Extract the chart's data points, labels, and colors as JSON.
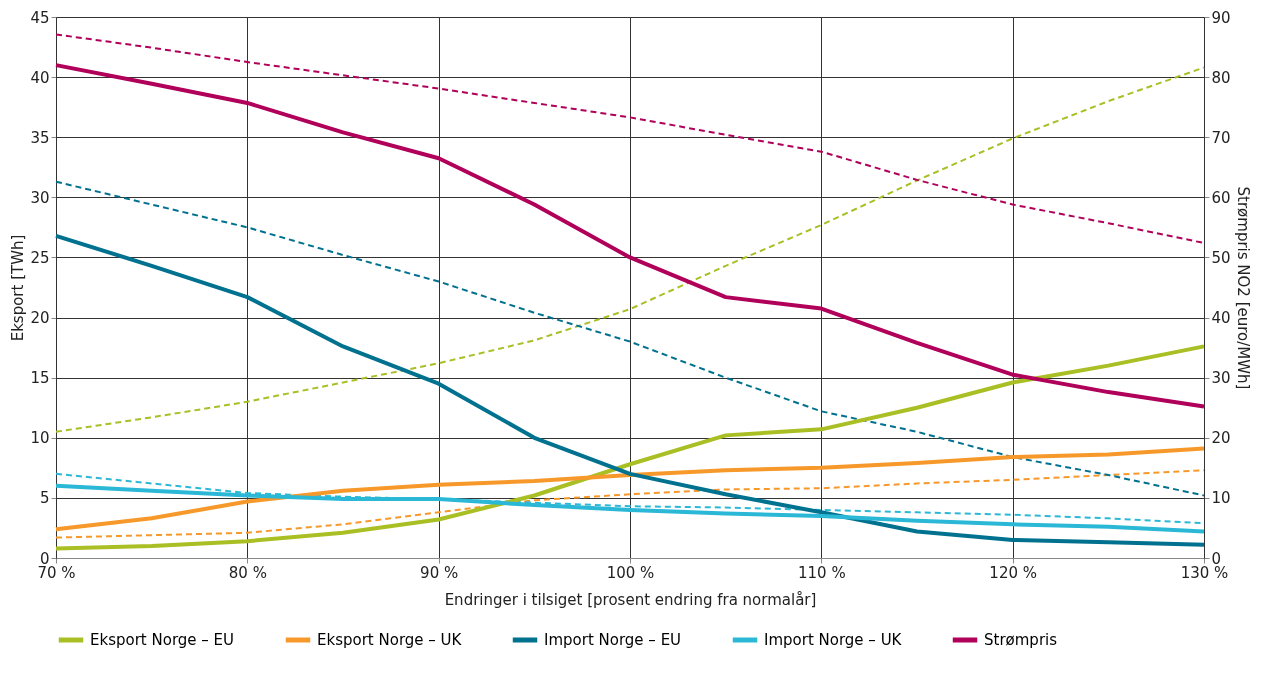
{
  "chart_data": {
    "type": "line",
    "xlabel": "Endringer i tilsiget [prosent endring fra normalår]",
    "ylabel": "Eksport [TWh]",
    "y2label": "Strømpris NO2 [euro/MWh]",
    "x": [
      70,
      75,
      80,
      85,
      90,
      95,
      100,
      105,
      110,
      115,
      120,
      125,
      130
    ],
    "xlim": [
      70,
      130
    ],
    "xticks": [
      {
        "value": 70,
        "label": "70 %"
      },
      {
        "value": 80,
        "label": "80 %"
      },
      {
        "value": 90,
        "label": "90 %"
      },
      {
        "value": 100,
        "label": "100 %"
      },
      {
        "value": 110,
        "label": "110 %"
      },
      {
        "value": 120,
        "label": "120 %"
      },
      {
        "value": 130,
        "label": "130 %"
      }
    ],
    "ylim": [
      0,
      45
    ],
    "yticks": [
      0,
      5,
      10,
      15,
      20,
      25,
      30,
      35,
      40,
      45
    ],
    "y2lim": [
      0,
      90
    ],
    "y2ticks": [
      0,
      10,
      20,
      30,
      40,
      50,
      60,
      70,
      80,
      90
    ],
    "grid": true,
    "legend": "bottom",
    "marker": "none",
    "series": [
      {
        "name": "Eksport Norge – EU",
        "color": "#a9bf24",
        "line_style": "solid",
        "values": [
          0.8,
          1.0,
          1.4,
          2.1,
          3.2,
          5.2,
          7.8,
          10.2,
          10.7,
          12.5,
          14.6,
          16.0,
          17.6
        ]
      },
      {
        "name": "Eksport Norge – UK",
        "color": "#f7982a",
        "line_style": "solid",
        "values": [
          2.4,
          3.3,
          4.7,
          5.6,
          6.1,
          6.4,
          6.9,
          7.3,
          7.5,
          7.9,
          8.4,
          8.6,
          9.1
        ]
      },
      {
        "name": "Import Norge – EU",
        "color": "#00718f",
        "line_style": "solid",
        "values": [
          26.8,
          24.3,
          21.7,
          17.6,
          14.5,
          10.0,
          7.0,
          5.3,
          3.8,
          2.2,
          1.5,
          1.3,
          1.1
        ]
      },
      {
        "name": "Import Norge – UK",
        "color": "#2bb8d6",
        "line_style": "solid",
        "values": [
          6.0,
          5.6,
          5.2,
          4.9,
          4.9,
          4.4,
          4.0,
          3.7,
          3.5,
          3.1,
          2.8,
          2.6,
          2.2
        ]
      },
      {
        "name": "Strømpris",
        "color": "#b0005a",
        "line_style": "solid",
        "axis": "y2",
        "values": [
          82.0,
          78.9,
          75.7,
          70.8,
          66.5,
          58.8,
          50.0,
          43.4,
          41.5,
          35.8,
          30.5,
          27.6,
          25.2
        ]
      },
      {
        "color": "#a9bf24",
        "line_style": "dashed",
        "values": [
          10.5,
          11.7,
          13.0,
          14.6,
          16.2,
          18.1,
          20.7,
          24.3,
          27.7,
          31.4,
          34.9,
          38.0,
          40.8
        ]
      },
      {
        "color": "#f7982a",
        "line_style": "dashed",
        "values": [
          1.7,
          1.9,
          2.1,
          2.8,
          3.8,
          4.8,
          5.3,
          5.7,
          5.8,
          6.2,
          6.5,
          6.9,
          7.3
        ]
      },
      {
        "color": "#00718f",
        "line_style": "dashed",
        "values": [
          31.3,
          29.4,
          27.5,
          25.2,
          23.0,
          20.4,
          18.0,
          15.0,
          12.2,
          10.5,
          8.4,
          6.9,
          5.2
        ]
      },
      {
        "color": "#2bb8d6",
        "line_style": "dashed",
        "values": [
          7.0,
          6.2,
          5.4,
          5.1,
          4.9,
          4.6,
          4.3,
          4.2,
          4.0,
          3.8,
          3.6,
          3.3,
          2.9
        ]
      },
      {
        "color": "#b0005a",
        "line_style": "dashed",
        "axis": "y2",
        "values": [
          87.1,
          84.9,
          82.5,
          80.3,
          78.1,
          75.7,
          73.3,
          70.4,
          67.6,
          62.9,
          58.8,
          55.7,
          52.4
        ]
      }
    ]
  }
}
